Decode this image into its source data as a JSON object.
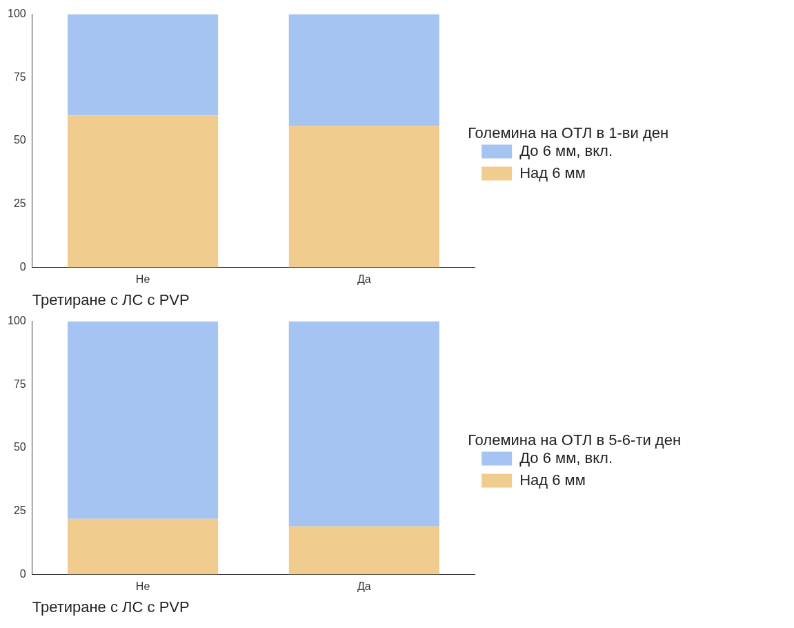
{
  "chart_data": [
    {
      "type": "bar",
      "stacked": true,
      "categories": [
        "Не",
        "Да"
      ],
      "xlabel": "Третиране с ЛС с PVP",
      "legend_title": "Големина на ОТЛ в 1-ви ден",
      "legend": "right",
      "grid": false,
      "ylim": [
        0,
        100
      ],
      "yticks": [
        0,
        25,
        50,
        75,
        100
      ],
      "series": [
        {
          "name": "Над 6 мм",
          "color": "#f0cc8e",
          "values": [
            60,
            56
          ]
        },
        {
          "name": "До 6 мм, вкл.",
          "color": "#a6c4f2",
          "values": [
            40,
            44
          ]
        }
      ]
    },
    {
      "type": "bar",
      "stacked": true,
      "categories": [
        "Не",
        "Да"
      ],
      "xlabel": "Третиране с ЛС с PVP",
      "legend_title": "Големина на ОТЛ в 5-6-ти ден",
      "legend": "right",
      "grid": false,
      "ylim": [
        0,
        100
      ],
      "yticks": [
        0,
        25,
        50,
        75,
        100
      ],
      "series": [
        {
          "name": "Над 6 мм",
          "color": "#f0cc8e",
          "values": [
            22,
            19
          ]
        },
        {
          "name": "До 6 мм, вкл.",
          "color": "#a6c4f2",
          "values": [
            78,
            81
          ]
        }
      ]
    }
  ]
}
